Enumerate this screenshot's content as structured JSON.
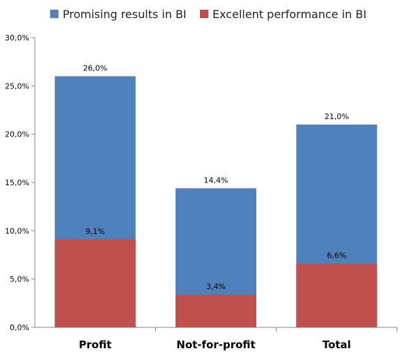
{
  "chart_data": {
    "type": "bar",
    "title": "",
    "xlabel": "",
    "ylabel": "",
    "categories": [
      "Profit",
      "Not-for-profit",
      "Total"
    ],
    "series": [
      {
        "name": "Promising results in BI",
        "values": [
          26.0,
          14.4,
          21.0
        ],
        "labels": [
          "26,0%",
          "14,4%",
          "21,0%"
        ],
        "color": "#4F81BD"
      },
      {
        "name": "Excellent performance in BI",
        "values": [
          9.1,
          3.4,
          6.6
        ],
        "labels": [
          "9,1%",
          "3,4%",
          "6,6%"
        ],
        "color": "#C0504D"
      }
    ],
    "ylim": [
      0,
      30
    ],
    "yticks": [
      0,
      5,
      10,
      15,
      20,
      25,
      30
    ],
    "ytick_labels": [
      "0,0%",
      "5,0%",
      "10,0%",
      "15,0%",
      "20,0%",
      "25,0%",
      "30,0%"
    ],
    "legend_position": "top",
    "grid": false,
    "overlap": true
  }
}
